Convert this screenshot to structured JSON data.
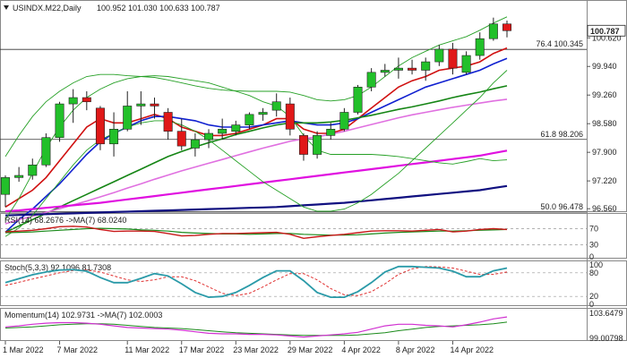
{
  "chart_data": {
    "type": "candlestick",
    "header": {
      "title": "USINDX.M22,Daily",
      "ohlc": "100.952 101.030 100.633 100.787"
    },
    "price_axis": {
      "ticks": [
        100.62,
        99.94,
        99.26,
        98.58,
        97.9,
        97.22,
        96.56
      ],
      "tick_labels": [
        "100.620",
        "99.940",
        "99.260",
        "98.580",
        "97.900",
        "97.220",
        "96.560"
      ],
      "current_price_label": "100.787",
      "ylim": [
        96.5,
        101.2
      ]
    },
    "x_axis": {
      "date_labels": [
        "1 Mar 2022",
        "7 Mar 2022",
        "11 Mar 2022",
        "17 Mar 2022",
        "23 Mar 2022",
        "29 Mar 2022",
        "4 Apr 2022",
        "8 Apr 2022",
        "14 Apr 2022"
      ],
      "label_bar_index": [
        0,
        4,
        9,
        13,
        17,
        21,
        25,
        29,
        33
      ]
    },
    "fib_levels": [
      {
        "label": "76.4 100.345",
        "value": 100.345
      },
      {
        "label": "61.8 98.206",
        "value": 98.206
      },
      {
        "label": "50.0 96.478",
        "value": 96.478
      }
    ],
    "candles": [
      {
        "o": 96.9,
        "h": 97.35,
        "l": 96.6,
        "c": 97.3
      },
      {
        "o": 97.3,
        "h": 97.55,
        "l": 97.2,
        "c": 97.35
      },
      {
        "o": 97.35,
        "h": 97.75,
        "l": 97.25,
        "c": 97.6
      },
      {
        "o": 97.6,
        "h": 98.35,
        "l": 97.55,
        "c": 98.25
      },
      {
        "o": 98.25,
        "h": 99.1,
        "l": 98.15,
        "c": 99.05
      },
      {
        "o": 99.05,
        "h": 99.4,
        "l": 98.6,
        "c": 99.2
      },
      {
        "o": 99.2,
        "h": 99.35,
        "l": 98.9,
        "c": 99.1
      },
      {
        "o": 98.95,
        "h": 99.0,
        "l": 97.95,
        "c": 98.1
      },
      {
        "o": 98.1,
        "h": 98.85,
        "l": 97.8,
        "c": 98.45
      },
      {
        "o": 98.45,
        "h": 99.35,
        "l": 98.4,
        "c": 99.0
      },
      {
        "o": 99.0,
        "h": 99.35,
        "l": 98.55,
        "c": 99.05
      },
      {
        "o": 99.05,
        "h": 99.2,
        "l": 98.7,
        "c": 99.0
      },
      {
        "o": 98.85,
        "h": 98.95,
        "l": 98.2,
        "c": 98.4
      },
      {
        "o": 98.4,
        "h": 98.7,
        "l": 97.95,
        "c": 98.05
      },
      {
        "o": 98.0,
        "h": 98.35,
        "l": 97.8,
        "c": 98.2
      },
      {
        "o": 98.2,
        "h": 98.45,
        "l": 98.0,
        "c": 98.35
      },
      {
        "o": 98.35,
        "h": 98.7,
        "l": 98.2,
        "c": 98.45
      },
      {
        "o": 98.4,
        "h": 98.65,
        "l": 98.3,
        "c": 98.55
      },
      {
        "o": 98.55,
        "h": 98.85,
        "l": 98.45,
        "c": 98.8
      },
      {
        "o": 98.8,
        "h": 98.95,
        "l": 98.65,
        "c": 98.85
      },
      {
        "o": 98.9,
        "h": 99.3,
        "l": 98.75,
        "c": 99.1
      },
      {
        "o": 99.05,
        "h": 99.2,
        "l": 98.3,
        "c": 98.45
      },
      {
        "o": 98.3,
        "h": 98.35,
        "l": 97.7,
        "c": 97.85
      },
      {
        "o": 97.85,
        "h": 98.4,
        "l": 97.75,
        "c": 98.3
      },
      {
        "o": 98.3,
        "h": 98.6,
        "l": 98.2,
        "c": 98.45
      },
      {
        "o": 98.45,
        "h": 98.95,
        "l": 98.4,
        "c": 98.85
      },
      {
        "o": 98.85,
        "h": 99.5,
        "l": 98.8,
        "c": 99.45
      },
      {
        "o": 99.45,
        "h": 99.9,
        "l": 99.35,
        "c": 99.8
      },
      {
        "o": 99.8,
        "h": 100.0,
        "l": 99.7,
        "c": 99.85
      },
      {
        "o": 99.85,
        "h": 100.15,
        "l": 99.65,
        "c": 99.9
      },
      {
        "o": 99.9,
        "h": 100.1,
        "l": 99.75,
        "c": 99.85
      },
      {
        "o": 99.85,
        "h": 100.15,
        "l": 99.6,
        "c": 100.05
      },
      {
        "o": 100.05,
        "h": 100.45,
        "l": 99.95,
        "c": 100.35
      },
      {
        "o": 100.35,
        "h": 100.5,
        "l": 99.75,
        "c": 99.9
      },
      {
        "o": 99.8,
        "h": 100.3,
        "l": 99.75,
        "c": 100.2
      },
      {
        "o": 100.2,
        "h": 100.75,
        "l": 100.1,
        "c": 100.6
      },
      {
        "o": 100.6,
        "h": 101.1,
        "l": 100.55,
        "c": 100.95
      },
      {
        "o": 100.95,
        "h": 101.03,
        "l": 100.63,
        "c": 100.79
      }
    ],
    "overlays": [
      {
        "color": "#d01010",
        "values": [
          96.6,
          96.8,
          97.0,
          97.3,
          97.7,
          98.1,
          98.5,
          98.7,
          98.6,
          98.6,
          98.7,
          98.8,
          98.7,
          98.5,
          98.4,
          98.3,
          98.3,
          98.35,
          98.45,
          98.55,
          98.7,
          98.7,
          98.45,
          98.35,
          98.35,
          98.45,
          98.7,
          98.95,
          99.2,
          99.45,
          99.6,
          99.7,
          99.85,
          99.9,
          99.95,
          100.05,
          100.25,
          100.38
        ]
      },
      {
        "color": "#1020d0",
        "values": [
          96.0,
          96.3,
          96.55,
          96.85,
          97.15,
          97.5,
          97.85,
          98.15,
          98.35,
          98.5,
          98.65,
          98.75,
          98.75,
          98.7,
          98.65,
          98.55,
          98.5,
          98.5,
          98.5,
          98.55,
          98.6,
          98.65,
          98.6,
          98.55,
          98.55,
          98.6,
          98.7,
          98.85,
          99.0,
          99.15,
          99.3,
          99.45,
          99.55,
          99.65,
          99.75,
          99.85,
          100.0,
          100.13
        ]
      },
      {
        "color": "#158515",
        "values": [
          96.0,
          96.15,
          96.3,
          96.45,
          96.6,
          96.75,
          96.9,
          97.05,
          97.2,
          97.35,
          97.5,
          97.65,
          97.8,
          97.92,
          98.03,
          98.13,
          98.22,
          98.32,
          98.4,
          98.48,
          98.55,
          98.6,
          98.6,
          98.6,
          98.62,
          98.66,
          98.72,
          98.78,
          98.85,
          98.92,
          98.98,
          99.05,
          99.12,
          99.2,
          99.27,
          99.33,
          99.41,
          99.48
        ]
      },
      {
        "color": "#e070e0",
        "values": [
          96.2,
          96.3,
          96.38,
          96.47,
          96.56,
          96.65,
          96.74,
          96.84,
          96.94,
          97.05,
          97.15,
          97.26,
          97.36,
          97.46,
          97.55,
          97.64,
          97.73,
          97.82,
          97.91,
          98.0,
          98.08,
          98.16,
          98.22,
          98.27,
          98.33,
          98.4,
          98.48,
          98.56,
          98.64,
          98.72,
          98.79,
          98.85,
          98.91,
          98.97,
          99.02,
          99.07,
          99.12,
          99.16
        ]
      },
      {
        "color": "#e010e0",
        "values": [
          96.5,
          96.52,
          96.55,
          96.58,
          96.61,
          96.64,
          96.67,
          96.7,
          96.74,
          96.78,
          96.82,
          96.86,
          96.9,
          96.94,
          96.98,
          97.02,
          97.06,
          97.1,
          97.14,
          97.18,
          97.22,
          97.26,
          97.3,
          97.34,
          97.38,
          97.42,
          97.46,
          97.5,
          97.54,
          97.58,
          97.62,
          97.66,
          97.7,
          97.74,
          97.78,
          97.82,
          97.88,
          97.94
        ]
      },
      {
        "color": "#101080",
        "values": [
          96.4,
          96.41,
          96.42,
          96.43,
          96.44,
          96.45,
          96.46,
          96.47,
          96.48,
          96.49,
          96.5,
          96.51,
          96.52,
          96.53,
          96.54,
          96.55,
          96.56,
          96.57,
          96.58,
          96.59,
          96.6,
          96.62,
          96.64,
          96.66,
          96.68,
          96.7,
          96.73,
          96.76,
          96.79,
          96.82,
          96.85,
          96.88,
          96.91,
          96.94,
          96.97,
          97.0,
          97.05,
          97.1
        ]
      },
      {
        "color": "#26a026",
        "values": [
          96.3,
          96.8,
          97.4,
          98.0,
          98.5,
          98.9,
          99.2,
          99.4,
          99.55,
          99.65,
          99.7,
          99.72,
          99.7,
          99.65,
          99.6,
          99.55,
          99.45,
          99.35,
          99.25,
          99.1,
          99.0,
          98.75,
          98.3,
          97.95,
          97.85,
          97.85,
          97.85,
          97.85,
          97.83,
          97.8,
          97.75,
          97.7,
          97.65,
          97.62,
          97.68,
          97.75,
          97.7,
          97.72
        ]
      },
      {
        "color": "#26a026",
        "values": [
          95.9,
          96.1,
          96.4,
          96.8,
          97.2,
          97.6,
          97.95,
          98.2,
          98.35,
          98.5,
          98.6,
          98.65,
          98.65,
          98.55,
          98.4,
          98.2,
          97.95,
          97.7,
          97.45,
          97.2,
          97.0,
          96.8,
          96.6,
          96.5,
          96.5,
          96.55,
          96.7,
          96.9,
          97.15,
          97.4,
          97.7,
          98.0,
          98.3,
          98.6,
          98.9,
          99.2,
          99.55,
          99.85
        ]
      },
      {
        "color": "#26a026",
        "values": [
          97.8,
          98.3,
          98.75,
          99.1,
          99.35,
          99.55,
          99.7,
          99.75,
          99.75,
          99.72,
          99.7,
          99.68,
          99.62,
          99.55,
          99.48,
          99.42,
          99.38,
          99.36,
          99.35,
          99.35,
          99.35,
          99.33,
          99.25,
          99.15,
          99.12,
          99.15,
          99.25,
          99.45,
          99.7,
          99.95,
          100.15,
          100.3,
          100.45,
          100.55,
          100.65,
          100.8,
          100.97,
          101.12
        ]
      }
    ],
    "rsi": {
      "label": "RSI(14) 68.2676 ->MA(7) 68.0240",
      "ticks": [
        70,
        30,
        0
      ],
      "ylim": [
        0,
        100
      ],
      "rsi_values": [
        62,
        64,
        66,
        70,
        75,
        76,
        74,
        68,
        63,
        64,
        64,
        63,
        58,
        52,
        53,
        56,
        58,
        58,
        59,
        60,
        61,
        56,
        46,
        50,
        53,
        56,
        60,
        64,
        65,
        65,
        64,
        66,
        68,
        62,
        64,
        68,
        70,
        68
      ],
      "ma_values": [
        60,
        61,
        62,
        64,
        66,
        68,
        70,
        71,
        70,
        69,
        67,
        66,
        64,
        61,
        59,
        58,
        57,
        57,
        56,
        57,
        58,
        58,
        56,
        55,
        54,
        54,
        55,
        57,
        59,
        61,
        62,
        63,
        64,
        64,
        65,
        66,
        67,
        68
      ]
    },
    "stoch": {
      "label": "Stoch(5,3,3) 92.1096 81.7308",
      "ticks": [
        100,
        80,
        20,
        0
      ],
      "ylim": [
        0,
        100
      ],
      "k_values": [
        55,
        65,
        75,
        82,
        87,
        88,
        84,
        68,
        55,
        55,
        66,
        78,
        72,
        52,
        30,
        18,
        20,
        30,
        48,
        68,
        85,
        85,
        60,
        30,
        18,
        18,
        32,
        55,
        82,
        96,
        96,
        94,
        92,
        84,
        70,
        70,
        85,
        92
      ],
      "d_values": [
        48,
        56,
        64,
        72,
        80,
        86,
        87,
        82,
        72,
        62,
        58,
        62,
        70,
        70,
        60,
        44,
        28,
        22,
        28,
        44,
        62,
        78,
        78,
        62,
        40,
        24,
        22,
        32,
        52,
        76,
        90,
        96,
        95,
        92,
        84,
        76,
        76,
        82
      ]
    },
    "momentum": {
      "label": "Momentum(14) 102.9731 ->MA(7) 102.0003",
      "ticks": [
        "103.6479",
        "99.00798"
      ],
      "ylim": [
        98.8,
        104.0
      ],
      "mom_values": [
        101.1,
        101.3,
        101.6,
        101.8,
        101.9,
        101.9,
        101.8,
        101.6,
        101.3,
        101.0,
        100.9,
        100.8,
        100.7,
        100.5,
        100.2,
        99.9,
        99.8,
        99.8,
        99.7,
        99.7,
        99.6,
        99.4,
        99.2,
        99.4,
        99.6,
        99.8,
        100.1,
        100.7,
        101.3,
        101.6,
        101.6,
        101.4,
        101.3,
        101.1,
        101.5,
        102.0,
        102.6,
        102.97
      ],
      "ma_values": [
        100.9,
        101.0,
        101.1,
        101.3,
        101.5,
        101.6,
        101.7,
        101.7,
        101.6,
        101.4,
        101.2,
        101.0,
        100.9,
        100.8,
        100.6,
        100.4,
        100.2,
        100.0,
        99.9,
        99.8,
        99.7,
        99.6,
        99.5,
        99.5,
        99.5,
        99.5,
        99.6,
        99.8,
        100.0,
        100.4,
        100.7,
        101.0,
        101.2,
        101.3,
        101.4,
        101.5,
        101.7,
        102.0
      ]
    }
  }
}
